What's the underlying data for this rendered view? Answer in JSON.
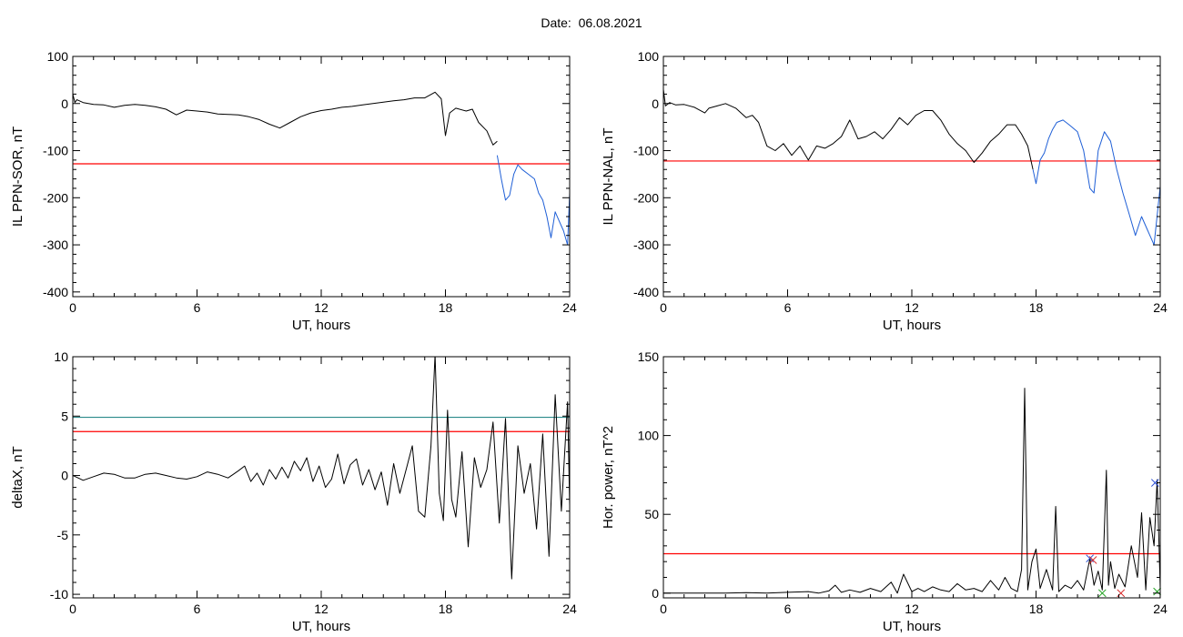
{
  "page": {
    "title": "Date:  06.08.2021"
  },
  "chart_data": [
    {
      "id": "il-sor",
      "type": "line",
      "xlabel": "UT, hours",
      "ylabel": "IL PPN-SOR, nT",
      "xlim": [
        0,
        24
      ],
      "ylim": [
        -410,
        100
      ],
      "xticks": [
        0,
        6,
        12,
        18,
        24
      ],
      "yticks": [
        100,
        0,
        -100,
        -200,
        -300,
        -400
      ],
      "threshold": {
        "value": -128,
        "color": "#ff0000"
      },
      "series": [
        {
          "color": "#000000",
          "x": [
            0,
            0.1,
            0.2,
            0.5,
            1,
            1.5,
            2,
            2.5,
            3,
            3.5,
            4,
            4.5,
            5,
            5.5,
            6,
            6.5,
            7,
            7.5,
            8,
            8.5,
            9,
            9.5,
            10,
            10.5,
            11,
            11.5,
            12,
            12.5,
            13,
            13.5,
            14,
            14.5,
            15,
            15.5,
            16,
            16.5,
            17,
            17.5,
            17.8,
            18,
            18.2,
            18.5,
            19,
            19.3,
            19.6,
            20,
            20.3,
            20.5
          ],
          "y": [
            20,
            2,
            8,
            2,
            -2,
            -3,
            -8,
            -4,
            -2,
            -4,
            -7,
            -12,
            -24,
            -14,
            -16,
            -18,
            -22,
            -23,
            -24,
            -28,
            -34,
            -44,
            -52,
            -40,
            -28,
            -20,
            -15,
            -12,
            -8,
            -6,
            -3,
            0,
            3,
            6,
            8,
            12,
            12,
            24,
            10,
            -68,
            -20,
            -10,
            -16,
            -12,
            -40,
            -58,
            -88,
            -80
          ]
        },
        {
          "color": "#1f5fd6",
          "x": [
            20.5,
            20.7,
            20.9,
            21.1,
            21.3,
            21.5,
            21.7,
            22.0,
            22.3,
            22.5,
            22.7,
            22.9,
            23.1,
            23.3,
            23.5,
            23.7,
            23.9,
            24
          ],
          "y": [
            -110,
            -160,
            -205,
            -195,
            -150,
            -130,
            -140,
            -150,
            -160,
            -190,
            -205,
            -240,
            -285,
            -230,
            -250,
            -270,
            -300,
            -190
          ]
        }
      ]
    },
    {
      "id": "il-nal",
      "type": "line",
      "xlabel": "UT, hours",
      "ylabel": "IL PPN-NAL, nT",
      "xlim": [
        0,
        24
      ],
      "ylim": [
        -410,
        100
      ],
      "xticks": [
        0,
        6,
        12,
        18,
        24
      ],
      "yticks": [
        100,
        0,
        -100,
        -200,
        -300,
        -400
      ],
      "threshold": {
        "value": -122,
        "color": "#ff0000"
      },
      "series": [
        {
          "color": "#000000",
          "x": [
            0,
            0.1,
            0.3,
            0.6,
            1,
            1.5,
            2,
            2.2,
            2.6,
            3,
            3.5,
            4,
            4.3,
            4.6,
            5,
            5.4,
            5.8,
            6.2,
            6.6,
            7,
            7.4,
            7.8,
            8.2,
            8.6,
            9,
            9.4,
            9.8,
            10.2,
            10.6,
            11,
            11.4,
            11.8,
            12.2,
            12.6,
            13,
            13.4,
            13.8,
            14.2,
            14.6,
            15,
            15.4,
            15.8,
            16.2,
            16.6,
            17,
            17.3,
            17.6,
            17.85
          ],
          "y": [
            30,
            -5,
            2,
            -3,
            -2,
            -8,
            -20,
            -10,
            -5,
            0,
            -10,
            -30,
            -25,
            -40,
            -90,
            -100,
            -85,
            -110,
            -90,
            -120,
            -90,
            -95,
            -85,
            -70,
            -35,
            -75,
            -70,
            -60,
            -75,
            -55,
            -30,
            -45,
            -25,
            -15,
            -15,
            -35,
            -65,
            -85,
            -100,
            -125,
            -105,
            -80,
            -65,
            -45,
            -45,
            -65,
            -90,
            -140
          ]
        },
        {
          "color": "#1f5fd6",
          "x": [
            17.85,
            18,
            18.2,
            18.4,
            18.6,
            18.8,
            19,
            19.3,
            19.6,
            20,
            20.3,
            20.6,
            20.8,
            21.0,
            21.3,
            21.6,
            21.9,
            22.2,
            22.5,
            22.8,
            23.1,
            23.4,
            23.7,
            24
          ],
          "y": [
            -140,
            -170,
            -120,
            -105,
            -75,
            -55,
            -40,
            -35,
            -45,
            -60,
            -100,
            -180,
            -190,
            -100,
            -60,
            -80,
            -140,
            -190,
            -235,
            -280,
            -240,
            -270,
            -300,
            -175
          ]
        }
      ]
    },
    {
      "id": "deltax",
      "type": "line",
      "xlabel": "UT, hours",
      "ylabel": "deltaX, nT",
      "xlim": [
        0,
        24
      ],
      "ylim": [
        -10.3,
        10
      ],
      "xticks": [
        0,
        6,
        12,
        18,
        24
      ],
      "yticks": [
        10,
        5,
        0,
        -5,
        -10
      ],
      "thresholds": [
        {
          "value": 4.9,
          "color": "#2a8a8a"
        },
        {
          "value": 3.7,
          "color": "#ff0000"
        }
      ],
      "series": [
        {
          "color": "#000000",
          "x": [
            0,
            0.5,
            1,
            1.5,
            2,
            2.5,
            3,
            3.5,
            4,
            4.5,
            5,
            5.5,
            6,
            6.5,
            7,
            7.5,
            8,
            8.3,
            8.6,
            8.9,
            9.2,
            9.5,
            9.8,
            10.1,
            10.4,
            10.7,
            11,
            11.3,
            11.6,
            11.9,
            12.2,
            12.5,
            12.8,
            13.1,
            13.4,
            13.7,
            14,
            14.3,
            14.6,
            14.9,
            15.2,
            15.5,
            15.8,
            16.1,
            16.4,
            16.7,
            17.0,
            17.3,
            17.5,
            17.7,
            17.9,
            18.1,
            18.3,
            18.5,
            18.8,
            19.1,
            19.4,
            19.7,
            20.0,
            20.3,
            20.6,
            20.9,
            21.2,
            21.5,
            21.8,
            22.1,
            22.4,
            22.7,
            23.0,
            23.3,
            23.6,
            23.9,
            24
          ],
          "y": [
            0,
            -0.4,
            -0.1,
            0.2,
            0.1,
            -0.2,
            -0.2,
            0.1,
            0.2,
            0,
            -0.2,
            -0.3,
            -0.1,
            0.3,
            0.1,
            -0.2,
            0.4,
            0.8,
            -0.5,
            0.2,
            -0.8,
            0.5,
            -0.3,
            0.7,
            -0.2,
            1.2,
            0.4,
            1.5,
            -0.5,
            0.8,
            -1.0,
            -0.3,
            1.8,
            -0.7,
            0.9,
            1.4,
            -0.8,
            0.5,
            -1.2,
            0.3,
            -2.5,
            1.0,
            -1.5,
            0.5,
            2.5,
            -3.0,
            -3.5,
            2.5,
            10.2,
            -1.5,
            -3.8,
            5.5,
            -2.0,
            -3.5,
            2.0,
            -6.0,
            1.5,
            -1.0,
            0.5,
            4.5,
            -4.0,
            4.8,
            -8.7,
            2.5,
            -1.5,
            1.0,
            -4.5,
            3.5,
            -6.8,
            6.8,
            -3.0,
            6.2,
            -2.5
          ]
        }
      ]
    },
    {
      "id": "hor-power",
      "type": "line",
      "xlabel": "UT, hours",
      "ylabel": "Hor. power, nT^2",
      "xlim": [
        0,
        24
      ],
      "ylim": [
        -3,
        150
      ],
      "xticks": [
        0,
        6,
        12,
        18,
        24
      ],
      "yticks": [
        150,
        100,
        50,
        0
      ],
      "threshold": {
        "value": 25,
        "color": "#ff0000"
      },
      "markers": [
        {
          "x": 20.6,
          "y": 22,
          "color": "#2b4fd6",
          "symbol": "x"
        },
        {
          "x": 20.75,
          "y": 21,
          "color": "#d62020",
          "symbol": "x"
        },
        {
          "x": 21.2,
          "y": 0,
          "color": "#1ea01e",
          "symbol": "x"
        },
        {
          "x": 22.1,
          "y": 0,
          "color": "#d62020",
          "symbol": "x"
        },
        {
          "x": 23.75,
          "y": 70,
          "color": "#2b4fd6",
          "symbol": "x"
        },
        {
          "x": 23.85,
          "y": 1,
          "color": "#1ea01e",
          "symbol": "x"
        }
      ],
      "series": [
        {
          "color": "#000000",
          "x": [
            0,
            1,
            2,
            3,
            4,
            5,
            6,
            7,
            7.5,
            8,
            8.3,
            8.6,
            9,
            9.5,
            10,
            10.5,
            11,
            11.3,
            11.6,
            12,
            12.3,
            12.6,
            13,
            13.4,
            13.8,
            14.2,
            14.6,
            15,
            15.4,
            15.8,
            16.2,
            16.5,
            16.8,
            17.1,
            17.3,
            17.45,
            17.6,
            17.8,
            18.0,
            18.2,
            18.5,
            18.8,
            18.95,
            19.1,
            19.4,
            19.7,
            20.0,
            20.3,
            20.6,
            20.8,
            21.0,
            21.2,
            21.4,
            21.5,
            21.6,
            21.8,
            22.0,
            22.3,
            22.6,
            22.9,
            23.1,
            23.3,
            23.5,
            23.7,
            23.85,
            24
          ],
          "y": [
            0,
            0,
            0,
            0,
            0.3,
            0,
            0.5,
            1,
            0,
            1.5,
            5,
            0.5,
            2,
            0.5,
            3,
            1,
            7,
            0,
            12,
            1,
            3,
            1,
            4,
            2,
            1,
            6,
            2,
            3,
            1,
            8,
            2,
            10,
            3,
            1,
            15,
            130,
            2,
            20,
            28,
            3,
            15,
            2,
            55,
            1,
            5,
            3,
            8,
            2,
            22,
            5,
            14,
            2,
            78,
            5,
            20,
            3,
            12,
            4,
            30,
            10,
            51,
            2,
            48,
            30,
            72,
            3
          ]
        }
      ]
    }
  ]
}
